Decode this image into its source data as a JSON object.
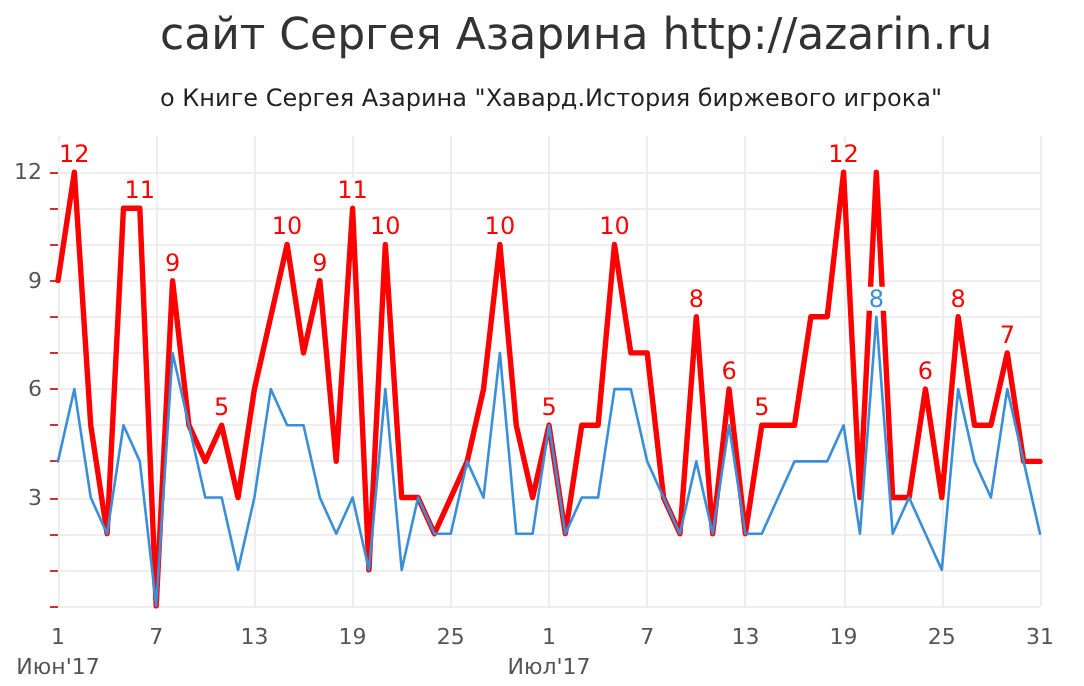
{
  "chart_data": {
    "type": "line",
    "title": "сайт Сергея Азарина http://azarin.ru",
    "subtitle": "о Книге Сергея Азарина \"Хавард.История биржевого игрока\"",
    "x": [
      "2017-06-01",
      "2017-06-02",
      "2017-06-03",
      "2017-06-04",
      "2017-06-05",
      "2017-06-06",
      "2017-06-07",
      "2017-06-08",
      "2017-06-09",
      "2017-06-10",
      "2017-06-11",
      "2017-06-12",
      "2017-06-13",
      "2017-06-14",
      "2017-06-15",
      "2017-06-16",
      "2017-06-17",
      "2017-06-18",
      "2017-06-19",
      "2017-06-20",
      "2017-06-21",
      "2017-06-22",
      "2017-06-23",
      "2017-06-24",
      "2017-06-25",
      "2017-06-26",
      "2017-06-27",
      "2017-06-28",
      "2017-06-29",
      "2017-06-30",
      "2017-07-01",
      "2017-07-02",
      "2017-07-03",
      "2017-07-04",
      "2017-07-05",
      "2017-07-06",
      "2017-07-07",
      "2017-07-08",
      "2017-07-09",
      "2017-07-10",
      "2017-07-11",
      "2017-07-12",
      "2017-07-13",
      "2017-07-14",
      "2017-07-15",
      "2017-07-16",
      "2017-07-17",
      "2017-07-18",
      "2017-07-19",
      "2017-07-20",
      "2017-07-21",
      "2017-07-22",
      "2017-07-23",
      "2017-07-24",
      "2017-07-25",
      "2017-07-26",
      "2017-07-27",
      "2017-07-28",
      "2017-07-29",
      "2017-07-30",
      "2017-07-31"
    ],
    "series": [
      {
        "color": "#ff0000",
        "values": [
          9,
          12,
          5,
          2,
          11,
          11,
          0,
          9,
          5,
          4,
          5,
          3,
          6,
          8,
          10,
          7,
          9,
          4,
          11,
          1,
          10,
          3,
          3,
          2,
          3,
          4,
          6,
          10,
          5,
          3,
          5,
          2,
          5,
          5,
          10,
          7,
          7,
          3,
          2,
          8,
          2,
          6,
          2,
          5,
          5,
          5,
          8,
          8,
          12,
          3,
          12,
          3,
          3,
          6,
          3,
          8,
          5,
          5,
          7,
          4,
          4
        ],
        "value_labels": [
          null,
          "12",
          null,
          null,
          null,
          "11",
          null,
          "9",
          null,
          null,
          "5",
          null,
          null,
          null,
          "10",
          null,
          "9",
          null,
          "11",
          null,
          "10",
          null,
          null,
          null,
          null,
          null,
          null,
          "10",
          null,
          null,
          "5",
          null,
          null,
          null,
          "10",
          null,
          null,
          null,
          null,
          "8",
          null,
          "6",
          null,
          "5",
          null,
          null,
          null,
          null,
          "12",
          null,
          null,
          null,
          null,
          "6",
          null,
          "8",
          null,
          null,
          "7",
          null,
          null
        ]
      },
      {
        "color": "#3a8fd9",
        "values": [
          4,
          6,
          3,
          2,
          5,
          4,
          0,
          7,
          5,
          3,
          3,
          1,
          3,
          6,
          5,
          5,
          3,
          2,
          3,
          1,
          6,
          1,
          3,
          2,
          2,
          4,
          3,
          7,
          2,
          2,
          5,
          2,
          3,
          3,
          6,
          6,
          4,
          3,
          2,
          4,
          2,
          5,
          2,
          2,
          3,
          4,
          4,
          4,
          5,
          2,
          8,
          2,
          3,
          2,
          1,
          6,
          4,
          3,
          6,
          4,
          2
        ],
        "value_labels": [
          null,
          null,
          null,
          null,
          null,
          null,
          null,
          null,
          null,
          null,
          null,
          null,
          null,
          null,
          null,
          null,
          null,
          null,
          null,
          null,
          null,
          null,
          null,
          null,
          null,
          null,
          null,
          null,
          null,
          null,
          null,
          null,
          null,
          null,
          null,
          null,
          null,
          null,
          null,
          null,
          null,
          null,
          null,
          null,
          null,
          null,
          null,
          null,
          null,
          null,
          "8",
          null,
          null,
          null,
          null,
          null,
          null,
          null,
          null,
          null,
          null
        ]
      }
    ],
    "xlim": [
      "2017-06-01",
      "2017-07-31"
    ],
    "xticks": [
      {
        "value": "2017-06-01",
        "label": "1\nИюн'17"
      },
      {
        "value": "2017-06-07",
        "label": "7"
      },
      {
        "value": "2017-06-13",
        "label": "13"
      },
      {
        "value": "2017-06-19",
        "label": "19"
      },
      {
        "value": "2017-06-25",
        "label": "25"
      },
      {
        "value": "2017-07-01",
        "label": "1\nИюл'17"
      },
      {
        "value": "2017-07-07",
        "label": "7"
      },
      {
        "value": "2017-07-13",
        "label": "13"
      },
      {
        "value": "2017-07-19",
        "label": "19"
      },
      {
        "value": "2017-07-25",
        "label": "25"
      },
      {
        "value": "2017-07-31",
        "label": "31"
      }
    ],
    "ylim": [
      0,
      13
    ],
    "yticks": [
      {
        "value": 0,
        "label": null
      },
      {
        "value": 1,
        "label": null
      },
      {
        "value": 2,
        "label": null
      },
      3,
      {
        "value": 4,
        "label": null
      },
      {
        "value": 5,
        "label": null
      },
      6,
      {
        "value": 7,
        "label": null
      },
      {
        "value": 8,
        "label": null
      },
      9,
      {
        "value": 10,
        "label": null
      },
      {
        "value": 11,
        "label": null
      },
      12
    ],
    "grid": true,
    "marker": "none",
    "line_style": "solid"
  }
}
